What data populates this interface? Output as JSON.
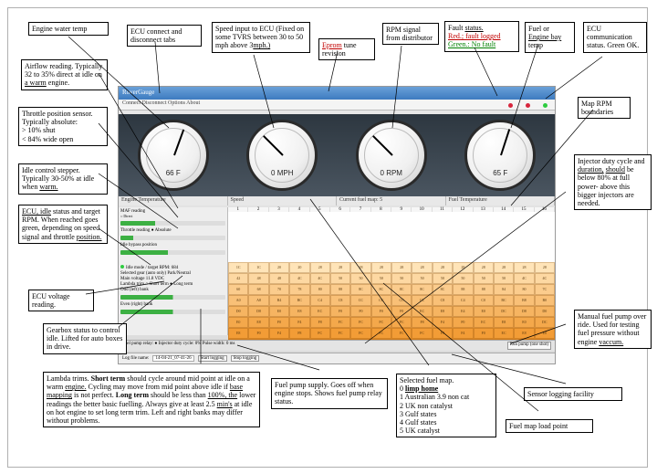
{
  "dashboard": {
    "title": "RoverGauge",
    "tabs": "Connect    Disconnect        Options        About",
    "gauges": [
      {
        "label": "66 F",
        "needle_deg": 200
      },
      {
        "label": "0 MPH",
        "needle_deg": 135
      },
      {
        "label": "0 RPM",
        "needle_deg": 135
      },
      {
        "label": "65 F",
        "needle_deg": 198
      }
    ],
    "section_labels": [
      "Engine Temperature",
      "Speed",
      "Current fuel map: 5",
      "Fuel Temperature"
    ],
    "mid_left": {
      "rows": [
        {
          "label": "MAF reading",
          "sub": "○ Direct",
          "bar_color": "#3cb043",
          "bar_pct": 33
        },
        {
          "label": "Throttle reading  ● Absolute",
          "sub": "",
          "bar_color": "#3cb043",
          "bar_pct": 12
        },
        {
          "label": "Idle bypass position",
          "sub": "",
          "bar_color": "#3cb043",
          "bar_pct": 45
        }
      ]
    },
    "fuel_header": [
      "1",
      "2",
      "3",
      "4",
      "5",
      "6",
      "7",
      "8",
      "9",
      "10",
      "11",
      "12",
      "13",
      "14",
      "15",
      "16"
    ],
    "lower_left": {
      "rows": [
        {
          "label": "Idle mode / target RPM:",
          "dot_color": "#2ecc40",
          "value": "684"
        },
        {
          "label": "Selected gear (auto only)",
          "value": "Park/Neutral"
        },
        {
          "label": "Main voltage",
          "value": "11.8 VDC"
        },
        {
          "label": "Lambda trim    ○ Short term  ● Long term",
          "value": ""
        },
        {
          "label": "Odd (left) bank",
          "bar_color": "#3cb043",
          "bar_pct": 50
        },
        {
          "label": "Even (right) bank",
          "bar_color": "#3cb043",
          "bar_pct": 50
        }
      ]
    },
    "grid": {
      "rows": 8,
      "cols": 16,
      "color_top": "#ffe4b8",
      "color_bottom": "#f09020",
      "sample_values": [
        "1C",
        "1C",
        "20",
        "20",
        "28",
        "28",
        "28",
        "28",
        "28",
        "28",
        "28",
        "28",
        "28",
        "28",
        "28",
        "28",
        "42",
        "48",
        "48",
        "4C",
        "4C",
        "50",
        "50",
        "50",
        "50",
        "50",
        "50",
        "50",
        "50",
        "50",
        "4C",
        "4C",
        "60",
        "68",
        "70",
        "78",
        "80",
        "88",
        "8C",
        "8C",
        "8C",
        "8C",
        "8C",
        "88",
        "88",
        "84",
        "80",
        "7C",
        "A0",
        "A8",
        "B4",
        "BC",
        "C4",
        "C8",
        "CC",
        "CC",
        "CC",
        "CC",
        "C8",
        "C4",
        "C0",
        "BC",
        "B8",
        "B0",
        "D0",
        "D8",
        "E0",
        "E8",
        "EC",
        "F0",
        "F0",
        "F0",
        "F0",
        "EC",
        "E8",
        "E4",
        "E0",
        "DC",
        "D8",
        "D0",
        "E0",
        "E8",
        "F0",
        "F4",
        "F8",
        "FC",
        "FC",
        "FC",
        "FC",
        "F8",
        "F4",
        "F0",
        "EC",
        "E8",
        "E0",
        "DC",
        "E8",
        "F0",
        "F4",
        "F8",
        "FC",
        "FC",
        "FC",
        "FC",
        "FC",
        "FC",
        "F8",
        "F4",
        "F0",
        "EC",
        "E8",
        "E0",
        "EC",
        "F0",
        "F4",
        "F8",
        "FC",
        "FC",
        "FC",
        "FC",
        "FC",
        "FC",
        "FC",
        "F8",
        "F4",
        "F0",
        "EC",
        "E8"
      ]
    },
    "fault_dots": [
      {
        "color": "#d7263d"
      },
      {
        "color": "#d7263d"
      },
      {
        "color": "#2ecc40"
      }
    ],
    "bottom_bar": {
      "left": "Fuel pump relay: ●    Injector duty cycle: 0%    Pulse width: 0 ms",
      "right": "Run pump (one shot)"
    },
    "log_bar": {
      "label": "Log file name:",
      "value": "14-04-21_07-41-26",
      "btns": [
        "Start logging",
        "Stop logging"
      ]
    }
  },
  "callouts": {
    "c1": "Engine water temp",
    "c2": "ECU connect and disconnect tabs",
    "c3": "Speed input to ECU (Fixed on some TVRS between 30 to 50 mph above 3",
    "c3s": "mph.)",
    "c4a": "Eprom",
    "c4b": " tune revision",
    "c5": "RPM signal from distributor",
    "c6a": "Fault ",
    "c6b": "status.",
    "c6c": "Red.; fault logged",
    "c6d": "Green.: No fault",
    "c7a": "Fuel or ",
    "c7b": "Engine bay",
    "c7c": " temp",
    "c8": "ECU communication status. Green OK.",
    "c9": "Map RPM boundaries",
    "c10a": "Airflow reading. Typically 32 to 35% direct at idle on ",
    "c10b": "a warm",
    "c10c": " engine.",
    "c11": "Throttle position sensor. Typically absolute:\n> 10% shut\n< 84% wide open",
    "c12a": "Idle control stepper. Typically 30-50% at idle when ",
    "c12b": "warm.",
    "c13a": "ECU, idle",
    "c13b": " status and target RPM. When reached goes green, depending on speed signal and throttle ",
    "c13c": "position.",
    "c14": "ECU voltage reading.",
    "c15": "Gearbox status to control idle. Lifted for auto boxes in drive.",
    "c16a": "Lambda trims. ",
    "c16b": "Short term",
    "c16c": " should cycle around mid point at idle on a warm ",
    "c16d": "engine.",
    "c16e": " Cycling may move from mid point above idle if ",
    "c16f": "base mapping",
    "c16g": " is not perfect. ",
    "c16h": "Long term",
    "c16i": " should be less than ",
    "c16j": "100%, the",
    "c16k": " lower readings the better basic fuelling. Always give at least 2.5 ",
    "c16l": "min's",
    "c16m": " at idle on hot engine to set long term trim. Left and right banks may differ without problems.",
    "c17": "Fuel pump supply. Goes off when engine stops. Shows fuel pump relay status.",
    "c18a": "Selected fuel map.\n0 ",
    "c18b": "limp home",
    "c18c": "\n1 Australian 3.9 non cat\n2 UK non catalyst\n3 Gulf states\n4 Gulf states\n5 UK catalyst",
    "c19": "Fuel map load point",
    "c20": "Sensor logging facility",
    "c21a": "Manual fuel pump over ride. Used for testing fuel pressure without engine ",
    "c21b": "vaccum.",
    "c22a": "Injector duty cycle and ",
    "c22b": "duration,",
    "c22c": " ",
    "c22d": "should",
    "c22e": " be below 80% at full power- above this bigger injectors are needed."
  }
}
